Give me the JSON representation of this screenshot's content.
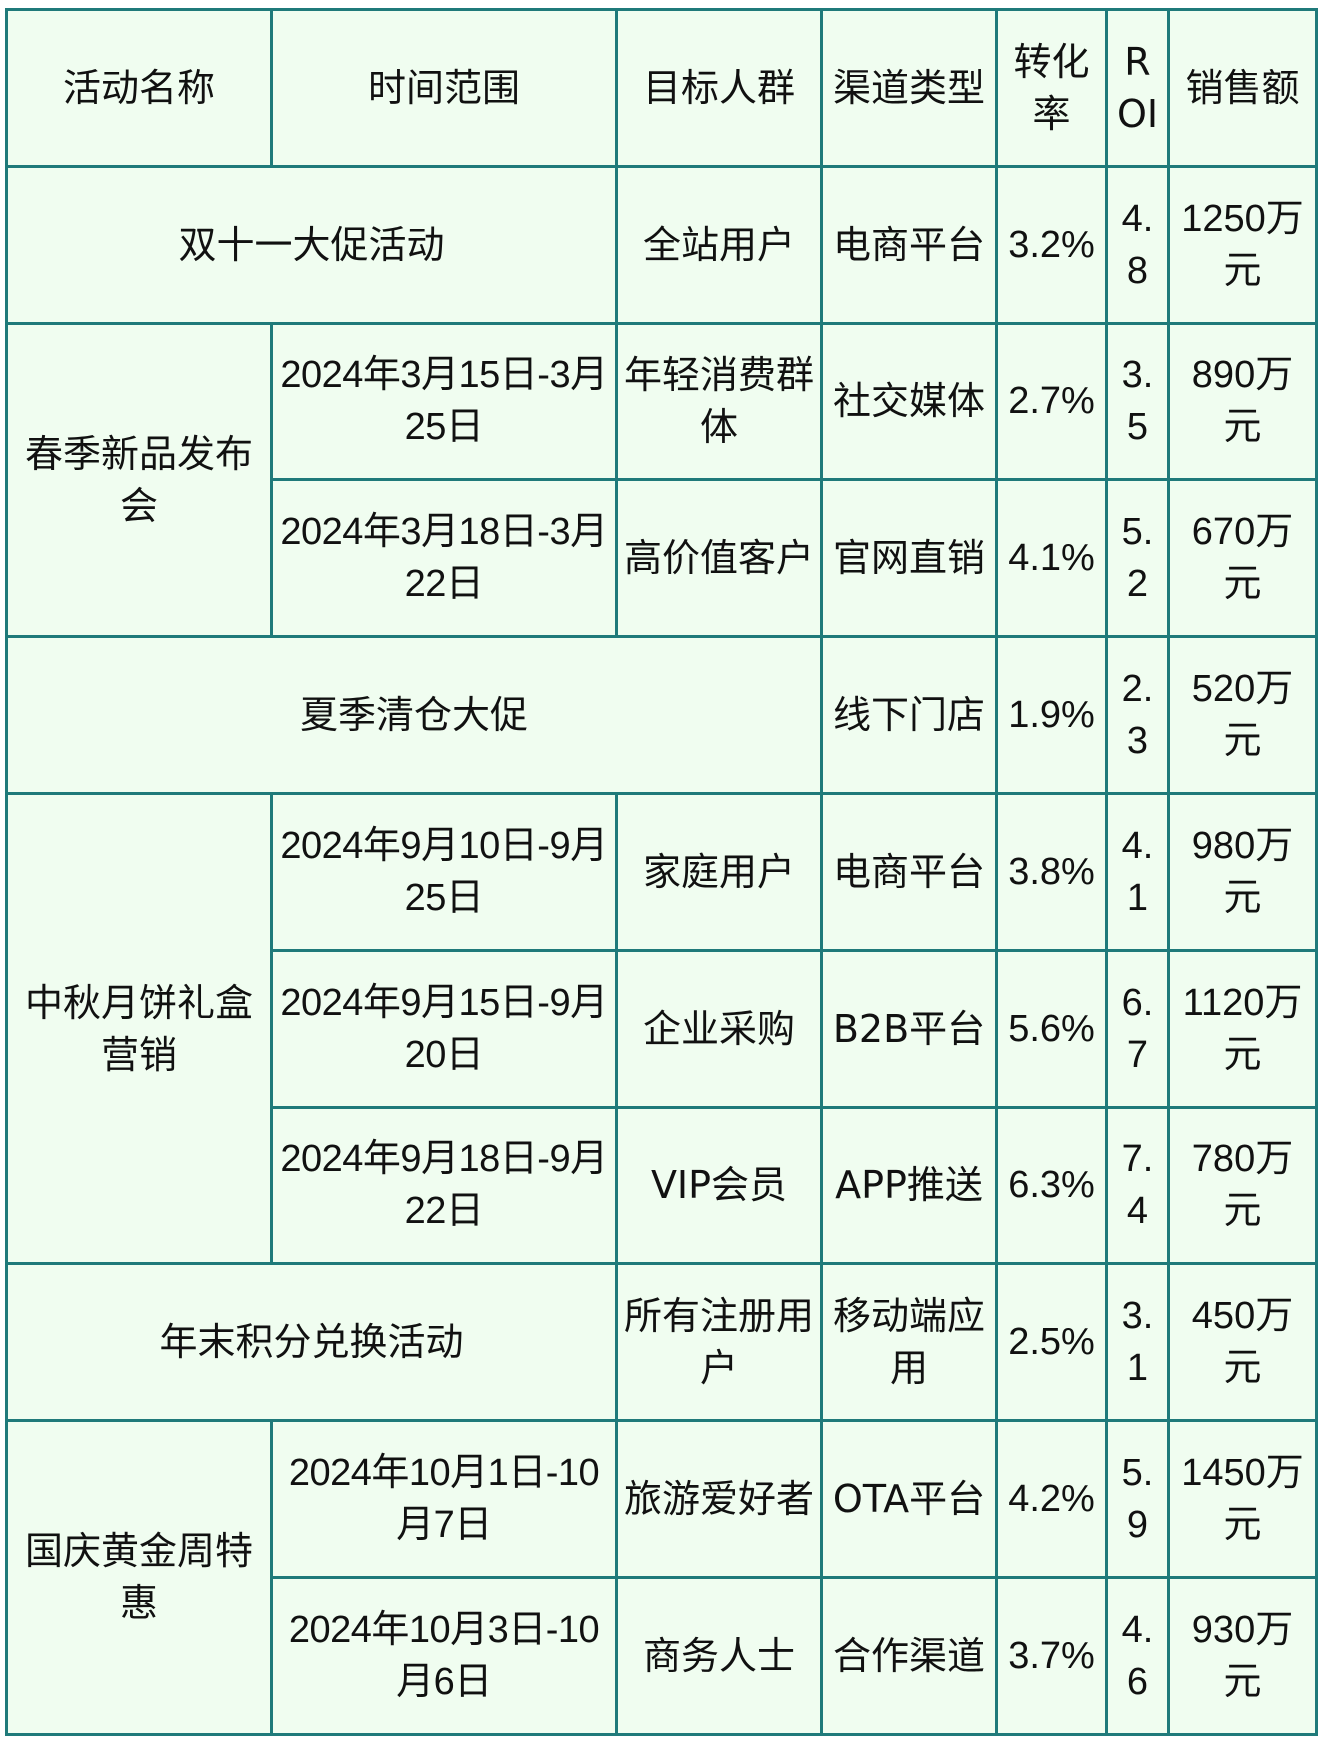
{
  "table": {
    "headers": {
      "activity": "活动名称",
      "time": "时间范围",
      "target": "目标人群",
      "channel": "渠道类型",
      "conversion": "转化率",
      "roi": "ROI",
      "sales": "销售额"
    },
    "rows": [
      {
        "activity": "双十一大促活动",
        "target": "全站用户",
        "channel": "电商平台",
        "conversion": "3.2%",
        "roi": "4.8",
        "sales": "1250万元"
      },
      {
        "activity": "春季新品发布会",
        "time": "2024年3月15日-3月25日",
        "target": "年轻消费群体",
        "channel": "社交媒体",
        "conversion": "2.7%",
        "roi": "3.5",
        "sales": "890万元"
      },
      {
        "time": "2024年3月18日-3月22日",
        "target": "高价值客户",
        "channel": "官网直销",
        "conversion": "4.1%",
        "roi": "5.2",
        "sales": "670万元"
      },
      {
        "activity": "夏季清仓大促",
        "channel": "线下门店",
        "conversion": "1.9%",
        "roi": "2.3",
        "sales": "520万元"
      },
      {
        "activity": "中秋月饼礼盒营销",
        "time": "2024年9月10日-9月25日",
        "target": "家庭用户",
        "channel": "电商平台",
        "conversion": "3.8%",
        "roi": "4.1",
        "sales": "980万元"
      },
      {
        "time": "2024年9月15日-9月20日",
        "target": "企业采购",
        "channel": "B2B平台",
        "conversion": "5.6%",
        "roi": "6.7",
        "sales": "1120万元"
      },
      {
        "time": "2024年9月18日-9月22日",
        "target": "VIP会员",
        "channel": "APP推送",
        "conversion": "6.3%",
        "roi": "7.4",
        "sales": "780万元"
      },
      {
        "activity": "年末积分兑换活动",
        "target": "所有注册用户",
        "channel": "移动端应用",
        "conversion": "2.5%",
        "roi": "3.1",
        "sales": "450万元"
      },
      {
        "activity": "国庆黄金周特惠",
        "time": "2024年10月1日-10月7日",
        "target": "旅游爱好者",
        "channel": "OTA平台",
        "conversion": "4.2%",
        "roi": "5.9",
        "sales": "1450万元"
      },
      {
        "time": "2024年10月3日-10月6日",
        "target": "商务人士",
        "channel": "合作渠道",
        "conversion": "3.7%",
        "roi": "4.6",
        "sales": "930万元"
      }
    ]
  }
}
